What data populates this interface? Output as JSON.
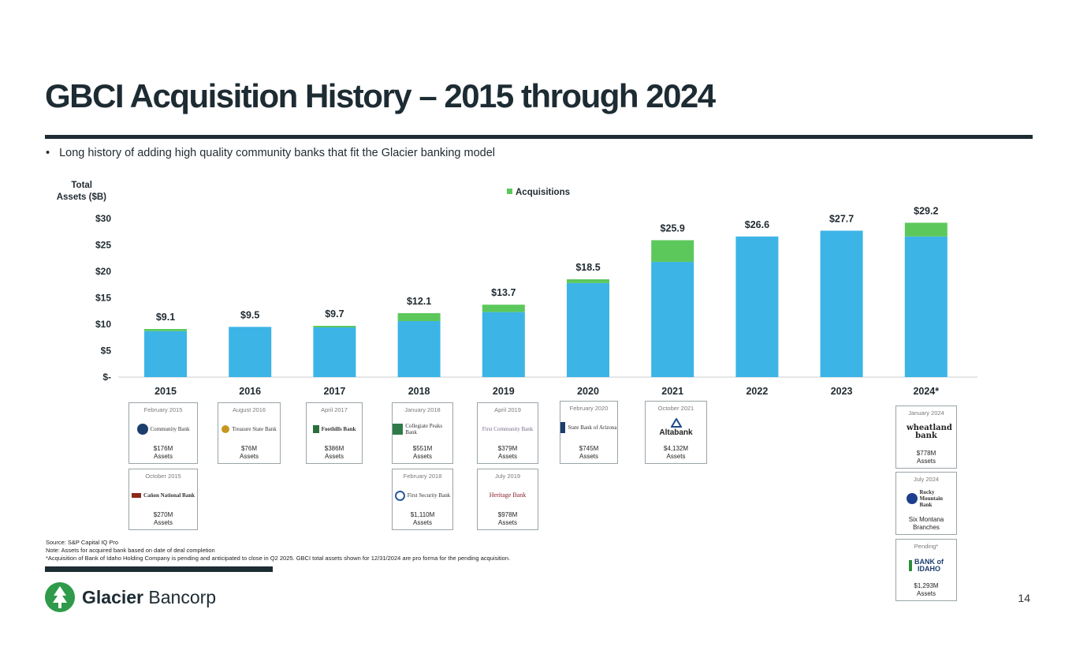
{
  "title": "GBCI Acquisition History – 2015 through 2024",
  "bullet": "Long history of adding high quality community banks that fit the Glacier banking model",
  "chart_data": {
    "type": "bar",
    "stacked": true,
    "yaxis_title_line1": "Total",
    "yaxis_title_line2": "Assets ($B)",
    "ylim": [
      0,
      30
    ],
    "yticks": [
      0,
      5,
      10,
      15,
      20,
      25,
      30
    ],
    "ytick_labels": [
      "$-",
      "$5",
      "$10",
      "$15",
      "$20",
      "$25",
      "$30"
    ],
    "categories": [
      "2015",
      "2016",
      "2017",
      "2018",
      "2019",
      "2020",
      "2021",
      "2022",
      "2023",
      "2024*"
    ],
    "series": [
      {
        "name": "Base",
        "color": "#3cb4e6",
        "values": [
          8.7,
          9.5,
          9.4,
          10.6,
          12.3,
          17.8,
          21.8,
          26.6,
          27.7,
          26.6
        ]
      },
      {
        "name": "Acquisitions",
        "color": "#5cc85c",
        "values": [
          0.4,
          0.0,
          0.3,
          1.5,
          1.4,
          0.7,
          4.1,
          0.0,
          0.0,
          2.6
        ]
      }
    ],
    "totals": [
      9.1,
      9.5,
      9.7,
      12.1,
      13.7,
      18.5,
      25.9,
      26.6,
      27.7,
      29.2
    ],
    "total_labels": [
      "$9.1",
      "$9.5",
      "$9.7",
      "$12.1",
      "$13.7",
      "$18.5",
      "$25.9",
      "$26.6",
      "$27.7",
      "$29.2"
    ],
    "legend": {
      "label": "Acquisitions",
      "placement": "top-center"
    }
  },
  "acquisitions": [
    {
      "id": "a1",
      "date": "February 2015",
      "bank": "Community Bank",
      "assets": "$176M",
      "assets_label": "Assets",
      "color": "#1c3e6e"
    },
    {
      "id": "a2",
      "date": "October 2015",
      "bank": "Cañon National Bank",
      "assets": "$270M",
      "assets_label": "Assets",
      "color": "#8c2a1a"
    },
    {
      "id": "a3",
      "date": "August 2016",
      "bank": "Treasure State Bank",
      "assets": "$76M",
      "assets_label": "Assets",
      "color": "#c8961e"
    },
    {
      "id": "a4",
      "date": "April 2017",
      "bank": "Foothills Bank",
      "assets": "$386M",
      "assets_label": "Assets",
      "color": "#2a6e3a"
    },
    {
      "id": "a5",
      "date": "January 2018",
      "bank": "Collegiate Peaks Bank",
      "assets": "$551M",
      "assets_label": "Assets",
      "color": "#2e7a4a"
    },
    {
      "id": "a6",
      "date": "February 2018",
      "bank": "First Security Bank",
      "assets": "$1,110M",
      "assets_label": "Assets",
      "color": "#2a5aa0"
    },
    {
      "id": "a7",
      "date": "April 2019",
      "bank": "First Community Bank",
      "assets": "$379M",
      "assets_label": "Assets",
      "color": "#7a6a8a"
    },
    {
      "id": "a8",
      "date": "July 2019",
      "bank": "Heritage Bank",
      "assets": "$978M",
      "assets_label": "Assets",
      "color": "#8c1e2a"
    },
    {
      "id": "a9",
      "date": "February 2020",
      "bank": "State Bank of Arizona",
      "assets": "$745M",
      "assets_label": "Assets",
      "color": "#1c3e6e"
    },
    {
      "id": "a10",
      "date": "October 2021",
      "bank": "Altabank",
      "assets": "$4,132M",
      "assets_label": "Assets",
      "color": "#1c4a8c"
    },
    {
      "id": "a11",
      "date": "January 2024",
      "bank": "wheatland bank",
      "assets": "$778M",
      "assets_label": "Assets",
      "color": "#c81e2a"
    },
    {
      "id": "a12",
      "date": "July 2024",
      "bank": "Rocky Mountain Bank",
      "assets": "Six Montana",
      "assets_label": "Branches",
      "color": "#1c3e8c"
    },
    {
      "id": "a13",
      "date": "Pending*",
      "bank": "BANK of IDAHO",
      "assets": "$1,293M",
      "assets_label": "Assets",
      "color": "#2e8c3a"
    }
  ],
  "notes": {
    "source": "Source: S&P Capital IQ Pro",
    "note": "Note: Assets for acquired bank based on date of deal completion",
    "footnote": "*Acquisition of Bank of Idaho Holding Company is pending and anticipated to close in Q2 2025. GBCI total assets shown for 12/31/2024 are pro forma for the pending acquisition."
  },
  "brand": {
    "bold": "Glacier",
    "light": " Bancorp",
    "color": "#2e9a4a"
  },
  "page_number": "14"
}
